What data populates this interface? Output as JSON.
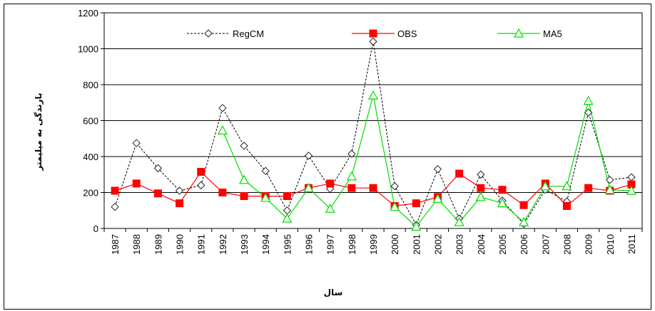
{
  "chart_data": {
    "type": "line",
    "title": "",
    "xlabel": "سال",
    "ylabel": "بارندگی به میلیمتر",
    "ylim": [
      0,
      1200
    ],
    "yticks": [
      0,
      200,
      400,
      600,
      800,
      1000,
      1200
    ],
    "grid": true,
    "legend_position": "top",
    "categories": [
      "1987",
      "1988",
      "1989",
      "1990",
      "1991",
      "1992",
      "1993",
      "1994",
      "1995",
      "1996",
      "1997",
      "1998",
      "1999",
      "2000",
      "2001",
      "2002",
      "2003",
      "2004",
      "2005",
      "2006",
      "2007",
      "2008",
      "2009",
      "2010",
      "2011"
    ],
    "series": [
      {
        "name": "RegCM",
        "color": "#000000",
        "style": "dashed",
        "marker": "diamond-open",
        "values": [
          120,
          475,
          335,
          210,
          240,
          670,
          460,
          320,
          100,
          405,
          220,
          415,
          1040,
          235,
          20,
          330,
          55,
          300,
          155,
          25,
          215,
          150,
          645,
          270,
          285
        ]
      },
      {
        "name": "OBS",
        "color": "#ff0000",
        "style": "solid",
        "marker": "square-filled",
        "values": [
          210,
          250,
          195,
          140,
          315,
          200,
          180,
          180,
          180,
          225,
          250,
          225,
          225,
          125,
          140,
          175,
          305,
          225,
          215,
          130,
          250,
          125,
          225,
          210,
          245
        ]
      },
      {
        "name": "MA5",
        "color": "#00dd00",
        "style": "solid",
        "marker": "triangle-open",
        "values": [
          null,
          null,
          null,
          null,
          null,
          545,
          270,
          170,
          55,
          225,
          110,
          290,
          740,
          120,
          10,
          165,
          35,
          175,
          140,
          35,
          235,
          235,
          710,
          215,
          210
        ]
      }
    ]
  }
}
